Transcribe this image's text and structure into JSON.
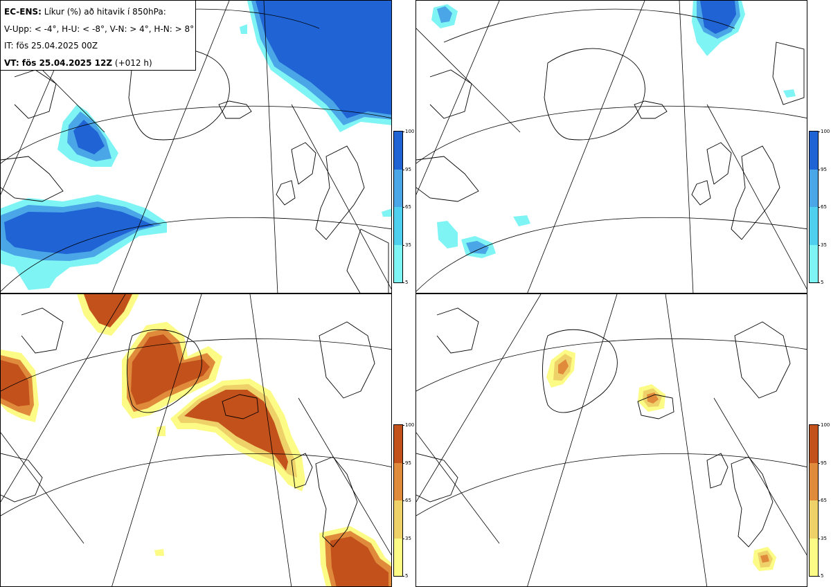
{
  "info": {
    "l1_bold": "EC-ENS:",
    "l1_rest": " Líkur (%) að hitavik í 850hPa:",
    "l2": "V-Upp: < -4°, H-U: < -8°, V-N: > 4°, H-N: > 8°",
    "l3": "IT: fös 25.04.2025 00Z",
    "l4_bold": "VT: fös 25.04.2025 12Z",
    "l4_rest": " (+012 h)"
  },
  "colorbar": {
    "labels": [
      "100",
      "95",
      "65",
      "35",
      "5"
    ],
    "levels_pct": [
      100,
      95,
      65,
      35,
      5
    ]
  },
  "colors": {
    "cold": [
      "#7ff4f4",
      "#4fd0ee",
      "#4aa6e6",
      "#1f63d4"
    ],
    "warm": [
      "#fbfb86",
      "#efd169",
      "#e08a3c",
      "#c3511c"
    ],
    "coast": "#000000",
    "grid": "#000000"
  },
  "panels": [
    {
      "id": "V-Upp",
      "palette": "cold"
    },
    {
      "id": "H-U",
      "palette": "cold"
    },
    {
      "id": "V-N",
      "palette": "warm"
    },
    {
      "id": "H-N",
      "palette": "warm"
    }
  ]
}
